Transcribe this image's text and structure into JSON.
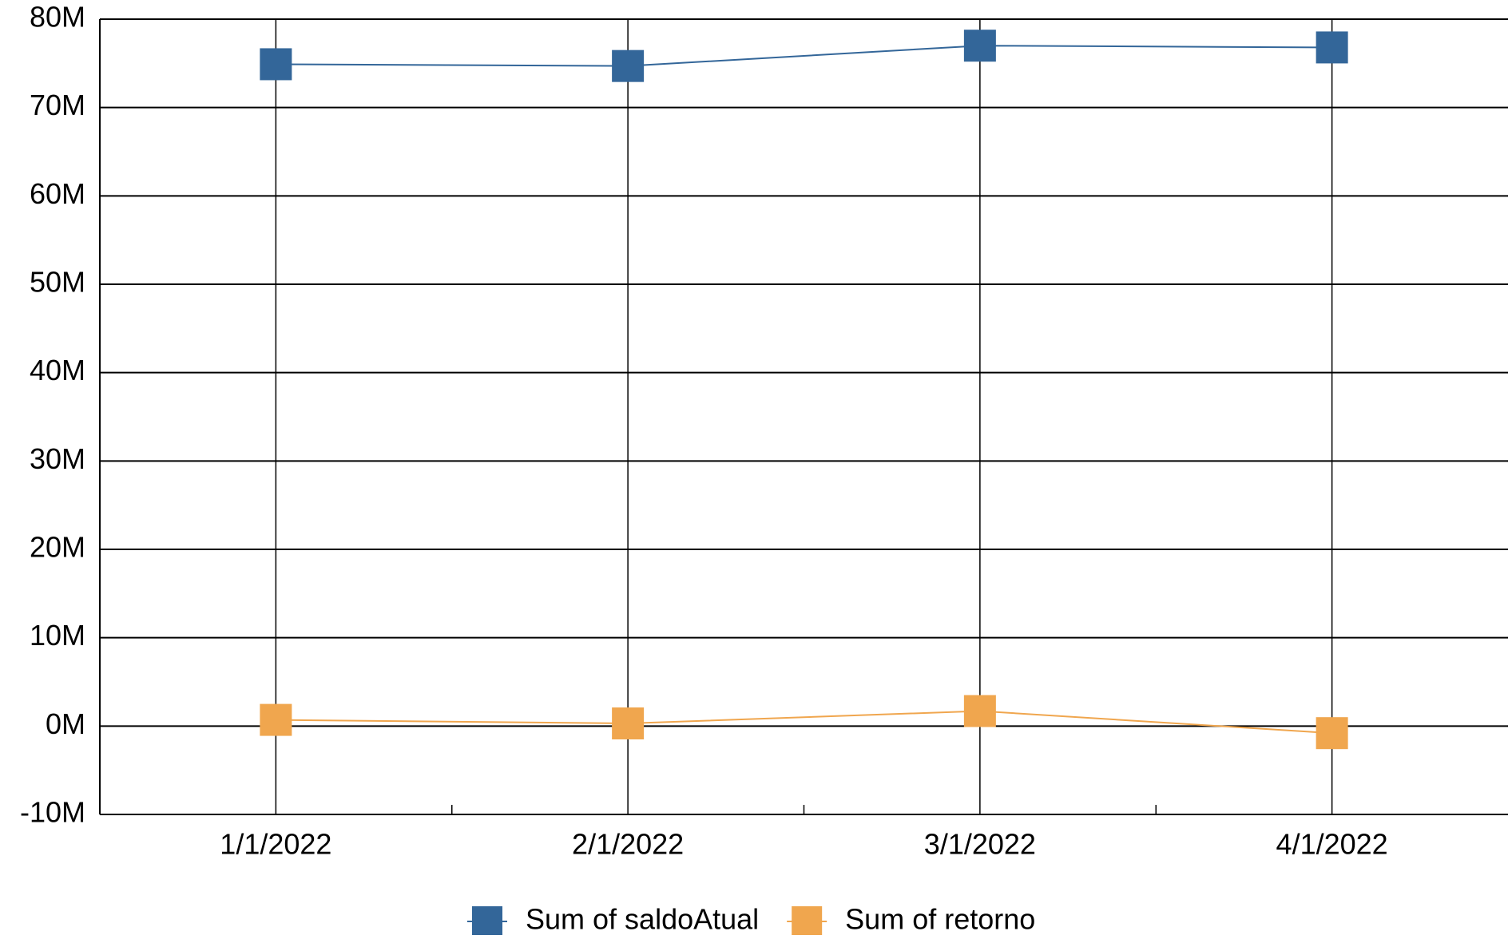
{
  "chart_data": {
    "type": "line",
    "categories": [
      "1/1/2022",
      "2/1/2022",
      "3/1/2022",
      "4/1/2022"
    ],
    "series": [
      {
        "name": "Sum of saldoAtual",
        "color": "#336699",
        "values": [
          74900000,
          74700000,
          77000000,
          76800000
        ]
      },
      {
        "name": "Sum of retorno",
        "color": "#f0a64e",
        "values": [
          700000,
          300000,
          1700000,
          -800000
        ]
      }
    ],
    "ylim": [
      -10000000,
      80000000
    ],
    "yticks": [
      {
        "value": -10000000,
        "label": "-10M"
      },
      {
        "value": 0,
        "label": "0M"
      },
      {
        "value": 10000000,
        "label": "10M"
      },
      {
        "value": 20000000,
        "label": "20M"
      },
      {
        "value": 30000000,
        "label": "30M"
      },
      {
        "value": 40000000,
        "label": "40M"
      },
      {
        "value": 50000000,
        "label": "50M"
      },
      {
        "value": 60000000,
        "label": "60M"
      },
      {
        "value": 70000000,
        "label": "70M"
      },
      {
        "value": 80000000,
        "label": "80M"
      }
    ],
    "grid": true,
    "legend": "bottom"
  }
}
